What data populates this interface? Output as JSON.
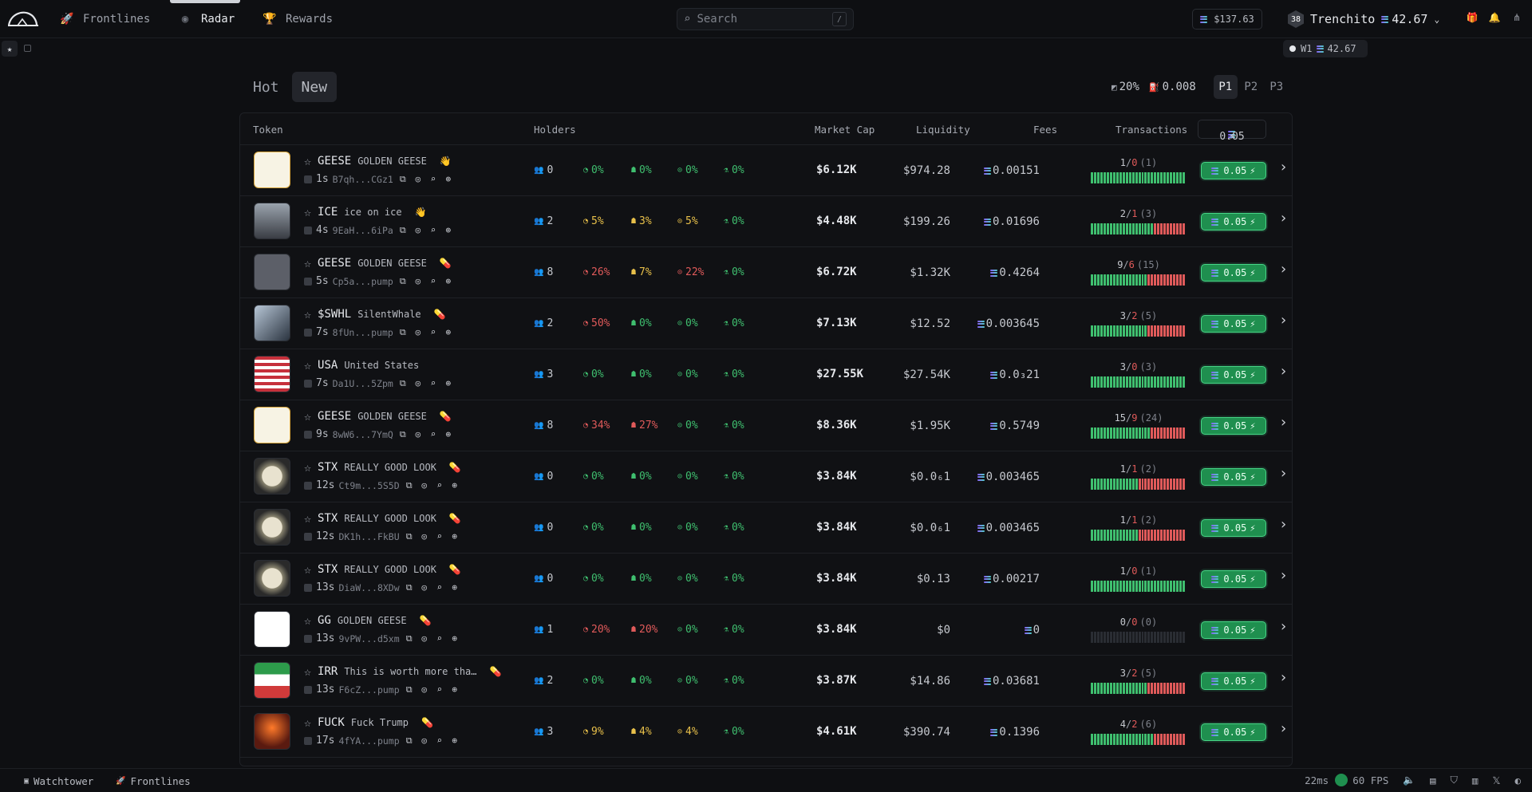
{
  "nav": {
    "items": [
      {
        "label": "Frontlines",
        "icon": "rocket-icon"
      },
      {
        "label": "Radar",
        "icon": "radar-icon"
      },
      {
        "label": "Rewards",
        "icon": "trophy-icon"
      }
    ],
    "active": "Radar",
    "search_placeholder": "Search",
    "search_shortcut": "/",
    "balance": "$137.63",
    "user": {
      "level": "38",
      "name": "Trenchito",
      "sol_balance": "42.67"
    }
  },
  "wallet_pill": {
    "label": "W1",
    "sol": "42.67"
  },
  "tabs": [
    {
      "label": "Hot"
    },
    {
      "label": "New"
    }
  ],
  "active_tab": "New",
  "filters": {
    "slippage": "20%",
    "priority": "0.008"
  },
  "presets": [
    {
      "label": "P1"
    },
    {
      "label": "P2"
    },
    {
      "label": "P3"
    }
  ],
  "active_preset": "P1",
  "columns": {
    "token": "Token",
    "holders": "Holders",
    "market_cap": "Market Cap",
    "liquidity": "Liquidity",
    "fees": "Fees",
    "transactions": "Transactions"
  },
  "quick_buy_amount": "0.05",
  "colors": {
    "green": "#3fbf6f",
    "red": "#e05a5a",
    "yellow": "#e8c04a",
    "accent": "#1f8f4f"
  },
  "rows": [
    {
      "ticker": "GEESE",
      "name": "GOLDEN GEESE",
      "badge": "👋",
      "age": "1s",
      "addr": "B7qh...CGz1",
      "holders": "0",
      "top10": "0%",
      "dev": "0%",
      "snipers": "0%",
      "insiders": "0%",
      "mc": "$6.12K",
      "liq": "$974.28",
      "fees": "0.00151",
      "buys": "1",
      "sells": "0",
      "total": "1",
      "buy_ratio": 1.0,
      "avatar": "goose"
    },
    {
      "ticker": "ICE",
      "name": "ice on ice",
      "badge": "👋",
      "age": "4s",
      "addr": "9EaH...6iPa",
      "holders": "2",
      "top10": "5%",
      "dev": "3%",
      "snipers": "5%",
      "insiders": "0%",
      "mc": "$4.48K",
      "liq": "$199.26",
      "fees": "0.01696",
      "buys": "2",
      "sells": "1",
      "total": "3",
      "buy_ratio": 0.66,
      "avatar": "ice"
    },
    {
      "ticker": "GEESE",
      "name": "GOLDEN GEESE",
      "badge": "💊",
      "age": "5s",
      "addr": "Cp5a...pump",
      "holders": "8",
      "top10": "26%",
      "dev": "7%",
      "snipers": "22%",
      "insiders": "0%",
      "mc": "$6.72K",
      "liq": "$1.32K",
      "fees": "0.4264",
      "buys": "9",
      "sells": "6",
      "total": "15",
      "buy_ratio": 0.6,
      "avatar": "cube"
    },
    {
      "ticker": "$SWHL",
      "name": "SilentWhale",
      "badge": "💊",
      "age": "7s",
      "addr": "8fUn...pump",
      "holders": "2",
      "top10": "50%",
      "dev": "0%",
      "snipers": "0%",
      "insiders": "0%",
      "mc": "$7.13K",
      "liq": "$12.52",
      "fees": "0.003645",
      "buys": "3",
      "sells": "2",
      "total": "5",
      "buy_ratio": 0.6,
      "avatar": "whale"
    },
    {
      "ticker": "USA",
      "name": "United States",
      "badge": "",
      "age": "7s",
      "addr": "Da1U...5Zpm",
      "holders": "3",
      "top10": "0%",
      "dev": "0%",
      "snipers": "0%",
      "insiders": "0%",
      "mc": "$27.55K",
      "liq": "$27.54K",
      "fees": "0.0₃21",
      "buys": "3",
      "sells": "0",
      "total": "3",
      "buy_ratio": 1.0,
      "avatar": "usa"
    },
    {
      "ticker": "GEESE",
      "name": "GOLDEN GEESE",
      "badge": "💊",
      "age": "9s",
      "addr": "8wW6...7YmQ",
      "holders": "8",
      "top10": "34%",
      "dev": "27%",
      "snipers": "0%",
      "insiders": "0%",
      "mc": "$8.36K",
      "liq": "$1.95K",
      "fees": "0.5749",
      "buys": "15",
      "sells": "9",
      "total": "24",
      "buy_ratio": 0.62,
      "avatar": "goose"
    },
    {
      "ticker": "STX",
      "name": "REALLY GOOD LOOK",
      "badge": "💊",
      "age": "12s",
      "addr": "Ct9m...5S5D",
      "holders": "0",
      "top10": "0%",
      "dev": "0%",
      "snipers": "0%",
      "insiders": "0%",
      "mc": "$3.84K",
      "liq": "$0.0₆1",
      "fees": "0.003465",
      "buys": "1",
      "sells": "1",
      "total": "2",
      "buy_ratio": 0.5,
      "avatar": "coin"
    },
    {
      "ticker": "STX",
      "name": "REALLY GOOD LOOK",
      "badge": "💊",
      "age": "12s",
      "addr": "DK1h...FkBU",
      "holders": "0",
      "top10": "0%",
      "dev": "0%",
      "snipers": "0%",
      "insiders": "0%",
      "mc": "$3.84K",
      "liq": "$0.0₆1",
      "fees": "0.003465",
      "buys": "1",
      "sells": "1",
      "total": "2",
      "buy_ratio": 0.5,
      "avatar": "coin"
    },
    {
      "ticker": "STX",
      "name": "REALLY GOOD LOOK",
      "badge": "💊",
      "age": "13s",
      "addr": "DiaW...8XDw",
      "holders": "0",
      "top10": "0%",
      "dev": "0%",
      "snipers": "0%",
      "insiders": "0%",
      "mc": "$3.84K",
      "liq": "$0.13",
      "fees": "0.00217",
      "buys": "1",
      "sells": "0",
      "total": "1",
      "buy_ratio": 1.0,
      "avatar": "coin"
    },
    {
      "ticker": "GG",
      "name": "GOLDEN GEESE",
      "badge": "💊",
      "age": "13s",
      "addr": "9vPW...d5xm",
      "holders": "1",
      "top10": "20%",
      "dev": "20%",
      "snipers": "0%",
      "insiders": "0%",
      "mc": "$3.84K",
      "liq": "$0",
      "fees": "0",
      "buys": "0",
      "sells": "0",
      "total": "0",
      "buy_ratio": 0,
      "avatar": "white"
    },
    {
      "ticker": "IRR",
      "name": "This is worth more tha…",
      "badge": "💊",
      "age": "13s",
      "addr": "F6cZ...pump",
      "holders": "2",
      "top10": "0%",
      "dev": "0%",
      "snipers": "0%",
      "insiders": "0%",
      "mc": "$3.87K",
      "liq": "$14.86",
      "fees": "0.03681",
      "buys": "3",
      "sells": "2",
      "total": "5",
      "buy_ratio": 0.6,
      "avatar": "iran"
    },
    {
      "ticker": "FUCK",
      "name": "Fuck Trump",
      "badge": "💊",
      "age": "17s",
      "addr": "4fYA...pump",
      "holders": "3",
      "top10": "9%",
      "dev": "4%",
      "snipers": "4%",
      "insiders": "0%",
      "mc": "$4.61K",
      "liq": "$390.74",
      "fees": "0.1396",
      "buys": "4",
      "sells": "2",
      "total": "6",
      "buy_ratio": 0.66,
      "avatar": "volcano"
    }
  ],
  "bottom": {
    "watchtower": "Watchtower",
    "frontlines": "Frontlines",
    "latency": "22ms",
    "fps": "60 FPS"
  }
}
